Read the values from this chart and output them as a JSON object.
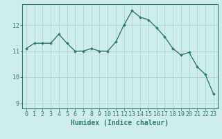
{
  "x": [
    0,
    1,
    2,
    3,
    4,
    5,
    6,
    7,
    8,
    9,
    10,
    11,
    12,
    13,
    14,
    15,
    16,
    17,
    18,
    19,
    20,
    21,
    22,
    23
  ],
  "y": [
    11.1,
    11.3,
    11.3,
    11.3,
    11.65,
    11.3,
    11.0,
    11.0,
    11.1,
    11.0,
    11.0,
    11.35,
    12.0,
    12.55,
    12.3,
    12.2,
    11.9,
    11.55,
    11.1,
    10.85,
    10.95,
    10.4,
    10.1,
    9.35
  ],
  "line_color": "#2e7d6e",
  "marker": "D",
  "marker_size": 2,
  "linewidth": 1.0,
  "bg_color": "#ceecea",
  "grid_color": "#aed4d0",
  "tick_color": "#2e7d6e",
  "xlabel": "Humidex (Indice chaleur)",
  "xlabel_fontsize": 7,
  "xlim": [
    -0.5,
    23.5
  ],
  "ylim": [
    8.8,
    12.8
  ],
  "yticks": [
    9,
    10,
    11,
    12
  ],
  "xticks": [
    0,
    1,
    2,
    3,
    4,
    5,
    6,
    7,
    8,
    9,
    10,
    11,
    12,
    13,
    14,
    15,
    16,
    17,
    18,
    19,
    20,
    21,
    22,
    23
  ],
  "tick_fontsize": 6
}
